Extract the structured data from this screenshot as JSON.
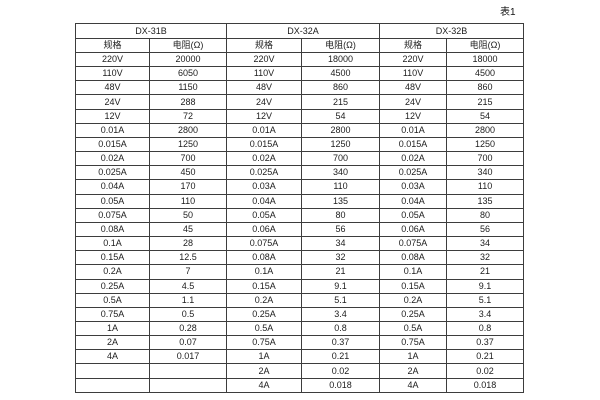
{
  "caption": "表1",
  "table": {
    "col_headers": {
      "spec": "规格",
      "resistance": "电阻(Ω)"
    },
    "groups": [
      {
        "name": "DX-31B",
        "rows": [
          [
            "220V",
            "20000"
          ],
          [
            "110V",
            "6050"
          ],
          [
            "48V",
            "1150"
          ],
          [
            "24V",
            "288"
          ],
          [
            "12V",
            "72"
          ],
          [
            "0.01A",
            "2800"
          ],
          [
            "0.015A",
            "1250"
          ],
          [
            "0.02A",
            "700"
          ],
          [
            "0.025A",
            "450"
          ],
          [
            "0.04A",
            "170"
          ],
          [
            "0.05A",
            "110"
          ],
          [
            "0.075A",
            "50"
          ],
          [
            "0.08A",
            "45"
          ],
          [
            "0.1A",
            "28"
          ],
          [
            "0.15A",
            "12.5"
          ],
          [
            "0.2A",
            "7"
          ],
          [
            "0.25A",
            "4.5"
          ],
          [
            "0.5A",
            "1.1"
          ],
          [
            "0.75A",
            "0.5"
          ],
          [
            "1A",
            "0.28"
          ],
          [
            "2A",
            "0.07"
          ],
          [
            "4A",
            "0.017"
          ],
          [
            "",
            ""
          ],
          [
            "",
            ""
          ]
        ]
      },
      {
        "name": "DX-32A",
        "rows": [
          [
            "220V",
            "18000"
          ],
          [
            "110V",
            "4500"
          ],
          [
            "48V",
            "860"
          ],
          [
            "24V",
            "215"
          ],
          [
            "12V",
            "54"
          ],
          [
            "0.01A",
            "2800"
          ],
          [
            "0.015A",
            "1250"
          ],
          [
            "0.02A",
            "700"
          ],
          [
            "0.025A",
            "340"
          ],
          [
            "0.03A",
            "110"
          ],
          [
            "0.04A",
            "135"
          ],
          [
            "0.05A",
            "80"
          ],
          [
            "0.06A",
            "56"
          ],
          [
            "0.075A",
            "34"
          ],
          [
            "0.08A",
            "32"
          ],
          [
            "0.1A",
            "21"
          ],
          [
            "0.15A",
            "9.1"
          ],
          [
            "0.2A",
            "5.1"
          ],
          [
            "0.25A",
            "3.4"
          ],
          [
            "0.5A",
            "0.8"
          ],
          [
            "0.75A",
            "0.37"
          ],
          [
            "1A",
            "0.21"
          ],
          [
            "2A",
            "0.02"
          ],
          [
            "4A",
            "0.018"
          ]
        ]
      },
      {
        "name": "DX-32B",
        "rows": [
          [
            "220V",
            "18000"
          ],
          [
            "110V",
            "4500"
          ],
          [
            "48V",
            "860"
          ],
          [
            "24V",
            "215"
          ],
          [
            "12V",
            "54"
          ],
          [
            "0.01A",
            "2800"
          ],
          [
            "0.015A",
            "1250"
          ],
          [
            "0.02A",
            "700"
          ],
          [
            "0.025A",
            "340"
          ],
          [
            "0.03A",
            "110"
          ],
          [
            "0.04A",
            "135"
          ],
          [
            "0.05A",
            "80"
          ],
          [
            "0.06A",
            "56"
          ],
          [
            "0.075A",
            "34"
          ],
          [
            "0.08A",
            "32"
          ],
          [
            "0.1A",
            "21"
          ],
          [
            "0.15A",
            "9.1"
          ],
          [
            "0.2A",
            "5.1"
          ],
          [
            "0.25A",
            "3.4"
          ],
          [
            "0.5A",
            "0.8"
          ],
          [
            "0.75A",
            "0.37"
          ],
          [
            "1A",
            "0.21"
          ],
          [
            "2A",
            "0.02"
          ],
          [
            "4A",
            "0.018"
          ]
        ]
      }
    ]
  }
}
